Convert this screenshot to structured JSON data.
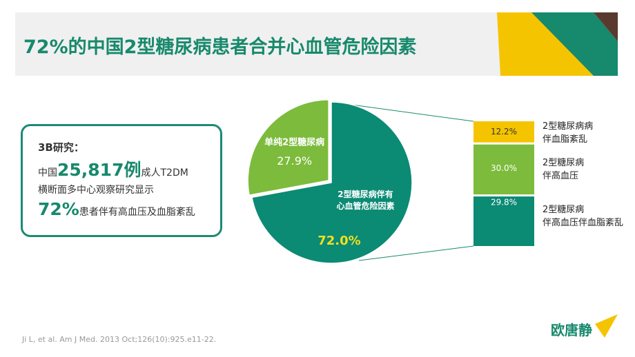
{
  "header": {
    "title": "72%的中国2型糖尿病患者合并心血管危险因素"
  },
  "callout": {
    "heading": "3B研究：",
    "line1_pre": "中国",
    "line1_big": "25,817例",
    "line1_post": "成人T2DM",
    "line2": "横断面多中心观察研究显示",
    "line3_big": "72%",
    "line3_post": "患者伴有高血压及血脂紊乱"
  },
  "citation": "Ji L, et al. Am J Med. 2013 Oct;126(10):925.e11-22.",
  "brand": "欧唐静",
  "chart_data": [
    {
      "type": "pie",
      "categories": [
        "2型糖尿病伴有\n心血管危险因素",
        "单纯2型糖尿病"
      ],
      "values": [
        72.0,
        27.9
      ],
      "value_labels": [
        "72.0%",
        "27.9%"
      ],
      "colors": [
        "#0b8a74",
        "#7dbb3c"
      ]
    },
    {
      "type": "bar",
      "stacked": true,
      "categories": [
        null
      ],
      "series": [
        {
          "name": "2型糖尿病\n伴高血压伴血脂紊乱",
          "color": "#0b8a74",
          "values": [
            29.8
          ],
          "value_labels": [
            "29.8%"
          ]
        },
        {
          "name": "2型糖尿病\n伴高血压",
          "color": "#7dbb3c",
          "values": [
            30.0
          ],
          "value_labels": [
            "30.0%"
          ]
        },
        {
          "name": "2型糖尿病病\n伴血脂紊乱",
          "color": "#f5c400",
          "values": [
            12.2
          ],
          "value_labels": [
            "12.2%"
          ]
        }
      ]
    }
  ]
}
